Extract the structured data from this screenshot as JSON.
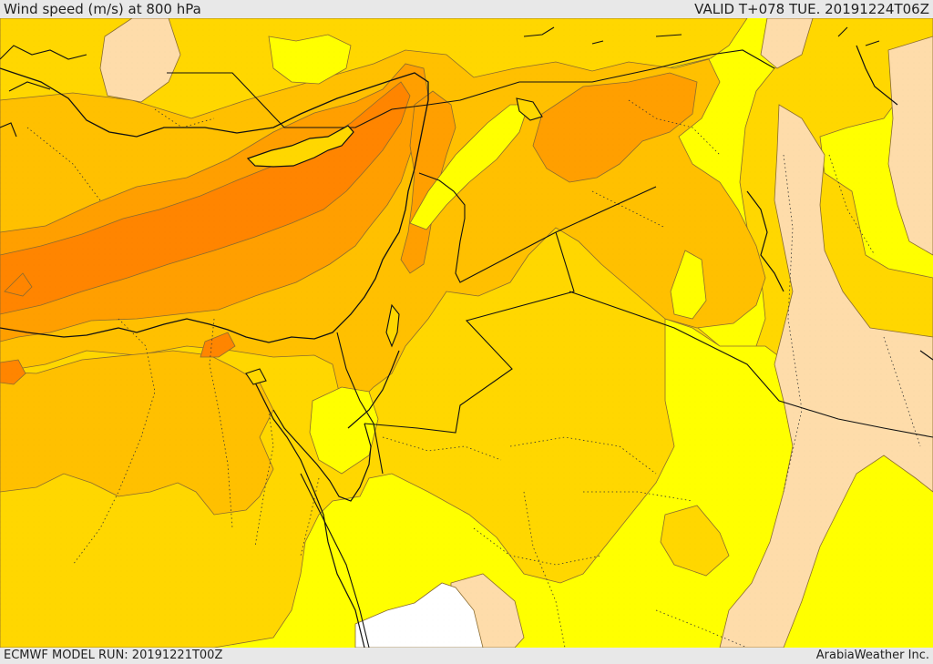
{
  "header": {
    "title": "Wind speed (m/s) at 800 hPa",
    "valid": "VALID T+078 TUE. 20191224T06Z"
  },
  "footer": {
    "model_run": "ECMWF MODEL RUN: 20191221T00Z",
    "provider": "ArabiaWeather Inc."
  },
  "colors": {
    "peach": "#fedcaa",
    "yellow": "#ffff00",
    "gold": "#ffd700",
    "amber": "#ffc000",
    "orange": "#ff9f00",
    "deep_orange": "#ff8500",
    "white": "#ffffff",
    "contour": "#8a6b2f",
    "coast": "#111111"
  },
  "map": {
    "field": "wind speed at 800 hPa"
  }
}
